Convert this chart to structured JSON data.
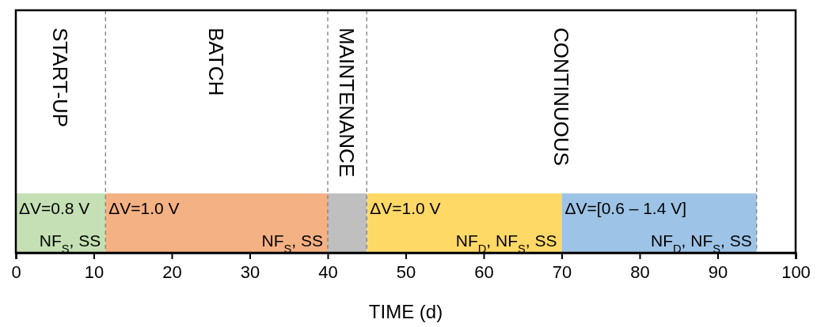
{
  "chart_data": {
    "type": "bar",
    "orientation": "horizontal",
    "categories": [
      null
    ],
    "series": [
      {
        "values": [
          11.5
        ],
        "base": [
          0
        ],
        "color": "#c5e0b4"
      },
      {
        "values": [
          28.5
        ],
        "base": [
          11.5
        ],
        "color": "#f4b183"
      },
      {
        "values": [
          5
        ],
        "base": [
          40
        ],
        "color": "#bfbfbf"
      },
      {
        "values": [
          25
        ],
        "base": [
          45
        ],
        "color": "#ffd966"
      },
      {
        "values": [
          25
        ],
        "base": [
          70
        ],
        "color": "#9dc3e6"
      }
    ],
    "xlabel": "TIME (d)",
    "xlim": [
      0,
      100
    ],
    "xticks": [
      0,
      10,
      20,
      30,
      40,
      50,
      60,
      70,
      80,
      90,
      100
    ],
    "tick_labels": "x",
    "grid": false,
    "ref_lines": [
      {
        "axis": "x",
        "value": 11.5,
        "line_style": "dashed",
        "color": "#7f7f7f"
      },
      {
        "axis": "x",
        "value": 40,
        "line_style": "dashed",
        "color": "#7f7f7f"
      },
      {
        "axis": "x",
        "value": 45,
        "line_style": "dashed",
        "color": "#7f7f7f"
      },
      {
        "axis": "x",
        "value": 95,
        "line_style": "dashed",
        "color": "#7f7f7f"
      }
    ],
    "annotations": [
      "START-UP",
      "BATCH",
      "MAINTENANCE",
      "CONTINUOUS",
      {
        "text": "ΔV=0.8 V",
        "x": 0
      },
      {
        "text": "NF$_{S}$, SS",
        "x": 11.5
      },
      {
        "text": "ΔV=1.0 V",
        "x": 11.5
      },
      {
        "text": "NF$_{S}$, SS",
        "x": 40
      },
      {
        "text": "ΔV=1.0 V",
        "x": 45
      },
      {
        "text": "NF$_{D}$, NF$_{S}$, SS",
        "x": 70
      },
      {
        "text": "ΔV=[0.6 – 1.4 V]",
        "x": 70
      },
      {
        "text": "NF$_{D}$, NF$_{S}$, SS",
        "x": 95
      }
    ]
  }
}
